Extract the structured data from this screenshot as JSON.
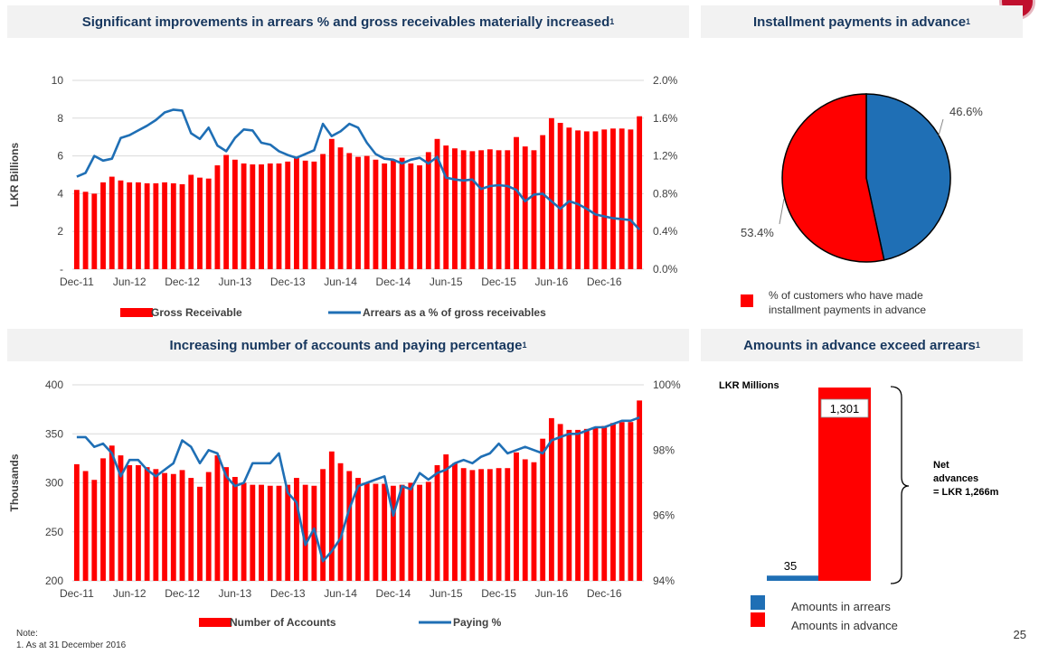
{
  "page": {
    "note_label": "Note:",
    "note_text": "1. As at 31 December 2016",
    "page_number": "25",
    "brand_color": "#c0102e"
  },
  "panels": {
    "p1_title": "Significant improvements in arrears % and gross receivables materially increased",
    "p2_title": "Installment payments in advance",
    "p3_title": "Increasing number of accounts and paying percentage",
    "p4_title": "Amounts in advance exceed arrears",
    "footnote_mark": "1"
  },
  "chart_data": [
    {
      "type": "bar+line",
      "ylabel": "LKR Billions",
      "ylim": [
        0,
        10
      ],
      "y_ticks": [
        "-",
        "2",
        "4",
        "6",
        "8",
        "10"
      ],
      "y2lim": [
        0,
        2.0
      ],
      "y2_ticks": [
        "0.0%",
        "0.4%",
        "0.8%",
        "1.2%",
        "1.6%",
        "2.0%"
      ],
      "x_ticks": [
        "Dec-11",
        "Jun-12",
        "Dec-12",
        "Jun-13",
        "Dec-13",
        "Jun-14",
        "Dec-14",
        "Jun-15",
        "Dec-15",
        "Jun-16",
        "Dec-16"
      ],
      "legend": [
        "Gross Receivable",
        "Arrears as a % of gross receivables"
      ],
      "colors": {
        "bars": "#ff0000",
        "line": "#1f6fb5"
      },
      "series": [
        {
          "name": "Gross Receivable",
          "axis": "left",
          "values": [
            4.2,
            4.1,
            4.0,
            4.6,
            4.9,
            4.7,
            4.6,
            4.6,
            4.55,
            4.55,
            4.6,
            4.55,
            4.5,
            5.0,
            4.85,
            4.8,
            5.5,
            6.05,
            5.8,
            5.6,
            5.55,
            5.55,
            5.6,
            5.6,
            5.7,
            5.9,
            5.75,
            5.7,
            6.1,
            6.9,
            6.45,
            6.15,
            5.95,
            6.0,
            5.8,
            5.6,
            5.8,
            5.9,
            5.6,
            5.5,
            6.2,
            6.9,
            6.55,
            6.4,
            6.3,
            6.25,
            6.3,
            6.35,
            6.3,
            6.3,
            7.0,
            6.5,
            6.3,
            7.1,
            8.0,
            7.75,
            7.5,
            7.35,
            7.3,
            7.3,
            7.4,
            7.45,
            7.45,
            7.4,
            8.1
          ]
        },
        {
          "name": "Arrears as a % of gross receivables",
          "axis": "right",
          "values": [
            0.98,
            1.02,
            1.2,
            1.15,
            1.17,
            1.39,
            1.42,
            1.47,
            1.52,
            1.58,
            1.66,
            1.69,
            1.68,
            1.44,
            1.38,
            1.5,
            1.31,
            1.25,
            1.39,
            1.48,
            1.47,
            1.34,
            1.32,
            1.25,
            1.21,
            1.18,
            1.22,
            1.26,
            1.54,
            1.41,
            1.46,
            1.54,
            1.5,
            1.34,
            1.22,
            1.17,
            1.16,
            1.12,
            1.16,
            1.18,
            1.12,
            1.19,
            0.97,
            0.95,
            0.94,
            0.95,
            0.85,
            0.88,
            0.89,
            0.88,
            0.84,
            0.72,
            0.79,
            0.8,
            0.72,
            0.64,
            0.72,
            0.69,
            0.64,
            0.58,
            0.56,
            0.54,
            0.53,
            0.52,
            0.42
          ]
        }
      ]
    },
    {
      "type": "pie",
      "slices": [
        {
          "label": "46.6%",
          "value": 46.6,
          "color": "#1f6fb5"
        },
        {
          "label": "53.4%",
          "value": 53.4,
          "color": "#ff0000"
        }
      ],
      "legend": [
        "% of customers who have made",
        "installment payments in advance"
      ]
    },
    {
      "type": "bar+line",
      "ylabel": "Thousands",
      "ylim": [
        200,
        400
      ],
      "y_ticks": [
        "200",
        "250",
        "300",
        "350",
        "400"
      ],
      "y2lim": [
        94,
        100
      ],
      "y2_ticks": [
        "94%",
        "96%",
        "98%",
        "100%"
      ],
      "x_ticks": [
        "Dec-11",
        "Jun-12",
        "Dec-12",
        "Jun-13",
        "Dec-13",
        "Jun-14",
        "Dec-14",
        "Jun-15",
        "Dec-15",
        "Jun-16",
        "Dec-16"
      ],
      "legend": [
        "Number of Accounts",
        "Paying %"
      ],
      "colors": {
        "bars": "#ff0000",
        "line": "#1f6fb5"
      },
      "series": [
        {
          "name": "Number of Accounts",
          "axis": "left",
          "values": [
            319,
            312,
            303,
            325,
            338,
            328,
            318,
            318,
            316,
            314,
            310,
            309,
            313,
            305,
            296,
            311,
            328,
            316,
            306,
            300,
            298,
            298,
            297,
            297,
            298,
            305,
            298,
            297,
            314,
            332,
            320,
            312,
            305,
            300,
            299,
            299,
            297,
            298,
            300,
            298,
            301,
            318,
            329,
            320,
            315,
            313,
            314,
            314,
            315,
            315,
            331,
            324,
            321,
            345,
            366,
            360,
            354,
            354,
            355,
            356,
            358,
            361,
            362,
            362,
            384
          ]
        },
        {
          "name": "Paying %",
          "axis": "right",
          "values": [
            98.4,
            98.4,
            98.1,
            98.2,
            97.9,
            97.2,
            97.7,
            97.7,
            97.4,
            97.2,
            97.4,
            97.6,
            98.3,
            98.1,
            97.6,
            98.0,
            97.9,
            97.2,
            96.9,
            97.0,
            97.6,
            97.6,
            97.6,
            97.9,
            96.7,
            96.4,
            95.1,
            95.6,
            94.6,
            94.9,
            95.3,
            96.2,
            96.9,
            97.0,
            97.1,
            97.2,
            96.0,
            96.9,
            96.8,
            97.3,
            97.1,
            97.3,
            97.4,
            97.6,
            97.7,
            97.6,
            97.8,
            97.9,
            98.2,
            97.9,
            98.0,
            98.1,
            98.0,
            97.9,
            98.3,
            98.4,
            98.5,
            98.5,
            98.6,
            98.7,
            98.7,
            98.8,
            98.9,
            98.9,
            99.0
          ]
        }
      ]
    },
    {
      "type": "bar",
      "ylabel": "LKR Millions",
      "categories": [
        "Amounts in arrears",
        "Amounts in advance"
      ],
      "values": [
        35,
        1301
      ],
      "value_labels": [
        "35",
        "1,301"
      ],
      "colors": [
        "#1f6fb5",
        "#ff0000"
      ],
      "annotation_lines": [
        "Net",
        "advances",
        "= LKR 1,266m"
      ]
    }
  ]
}
